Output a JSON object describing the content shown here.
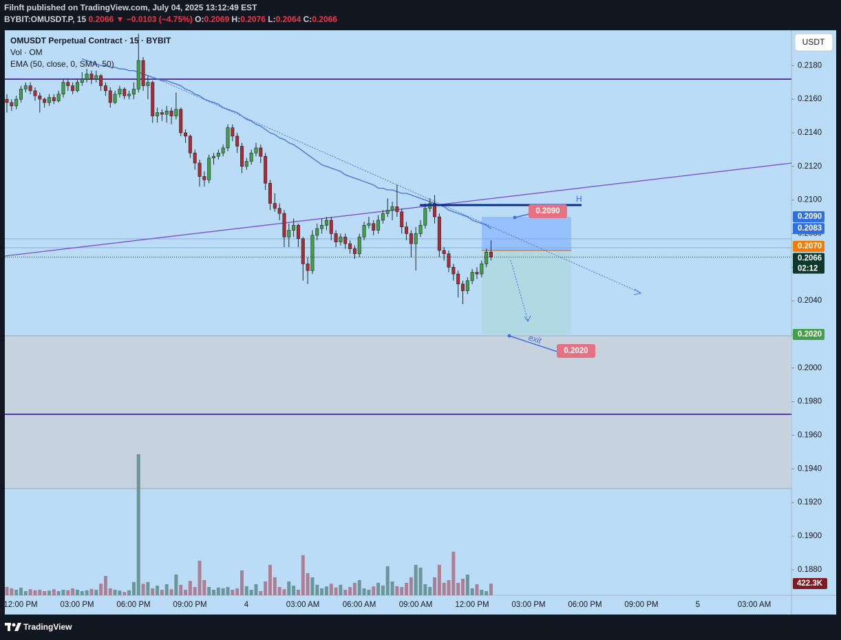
{
  "header": {
    "publisher": "Filnft published on TradingView.com, July 04, 2025 13:12:49 EST",
    "symbol": "BYBIT:OMUSDT.P, 15",
    "last": "0.2066",
    "change": "▼ −0.0103 (−4.75%)",
    "ohlc": [
      {
        "key": "O:",
        "value": "0.2069"
      },
      {
        "key": "H:",
        "value": "0.2076"
      },
      {
        "key": "L:",
        "value": "0.2064"
      },
      {
        "key": "C:",
        "value": "0.2066"
      }
    ]
  },
  "legend": [
    "OMUSDT Perpetual Contract · 15 · BYBIT",
    "Vol · OM",
    "EMA (50, close, 0, SMA, 50)"
  ],
  "currency_button": "USDT",
  "footer": {
    "brand": "TradingView"
  },
  "chart_data": {
    "type": "candlestick",
    "up_color": "#43a047",
    "down_color": "#b22833",
    "volume_up_color": "#6a969a",
    "volume_down_color": "#ad7f95",
    "ema_color": "#3f6fd8",
    "ylim": [
      0.18648,
      0.2201
    ],
    "yticks": [
      {
        "value": 0.218,
        "label": "0.2180"
      },
      {
        "value": 0.216,
        "label": "0.2160"
      },
      {
        "value": 0.214,
        "label": "0.2140"
      },
      {
        "value": 0.212,
        "label": "0.2120"
      },
      {
        "value": 0.21,
        "label": "0.2100"
      },
      {
        "value": 0.208,
        "label": "0.2080"
      },
      {
        "value": 0.206,
        "label": "0.2060"
      },
      {
        "value": 0.204,
        "label": "0.2040"
      },
      {
        "value": 0.202,
        "label": "0.2020"
      },
      {
        "value": 0.2,
        "label": "0.2000"
      },
      {
        "value": 0.198,
        "label": "0.1980"
      },
      {
        "value": 0.196,
        "label": "0.1960"
      },
      {
        "value": 0.194,
        "label": "0.1940"
      },
      {
        "value": 0.192,
        "label": "0.1920"
      },
      {
        "value": 0.19,
        "label": "0.1900"
      },
      {
        "value": 0.188,
        "label": "0.1880"
      }
    ],
    "time_labels": [
      "12:00 PM",
      "03:00 PM",
      "06:00 PM",
      "09:00 PM",
      "4",
      "03:00 AM",
      "06:00 AM",
      "09:00 AM",
      "12:00 PM",
      "03:00 PM",
      "06:00 PM",
      "09:00 PM",
      "5",
      "03:00 AM"
    ],
    "candles": [
      [
        0.216,
        0.2163,
        0.2152,
        0.2158
      ],
      [
        0.2158,
        0.216,
        0.2153,
        0.2156
      ],
      [
        0.2156,
        0.2162,
        0.2154,
        0.216
      ],
      [
        0.216,
        0.2168,
        0.2158,
        0.2166
      ],
      [
        0.2166,
        0.217,
        0.2164,
        0.2168
      ],
      [
        0.2168,
        0.217,
        0.2163,
        0.2165
      ],
      [
        0.2165,
        0.2167,
        0.2159,
        0.2162
      ],
      [
        0.2162,
        0.2164,
        0.2152,
        0.216
      ],
      [
        0.216,
        0.2161,
        0.2155,
        0.2158
      ],
      [
        0.2158,
        0.2163,
        0.2156,
        0.2161
      ],
      [
        0.2161,
        0.2163,
        0.2157,
        0.2159
      ],
      [
        0.2159,
        0.2165,
        0.2158,
        0.2163
      ],
      [
        0.2163,
        0.2172,
        0.2161,
        0.217
      ],
      [
        0.217,
        0.2172,
        0.2165,
        0.2168
      ],
      [
        0.2168,
        0.217,
        0.2163,
        0.2165
      ],
      [
        0.2165,
        0.2172,
        0.2164,
        0.217
      ],
      [
        0.217,
        0.2176,
        0.2168,
        0.2172
      ],
      [
        0.2172,
        0.2178,
        0.217,
        0.2175
      ],
      [
        0.2175,
        0.2177,
        0.2169,
        0.2172
      ],
      [
        0.2172,
        0.2177,
        0.217,
        0.2174
      ],
      [
        0.2174,
        0.2175,
        0.2165,
        0.2168
      ],
      [
        0.2168,
        0.217,
        0.2162,
        0.2165
      ],
      [
        0.2165,
        0.2167,
        0.2155,
        0.2158
      ],
      [
        0.2158,
        0.2165,
        0.2157,
        0.2163
      ],
      [
        0.2163,
        0.2168,
        0.2161,
        0.2166
      ],
      [
        0.2166,
        0.2167,
        0.216,
        0.2162
      ],
      [
        0.2162,
        0.2165,
        0.216,
        0.2163
      ],
      [
        0.2163,
        0.217,
        0.216,
        0.2166
      ],
      [
        0.2166,
        0.2199,
        0.2164,
        0.2183
      ],
      [
        0.2183,
        0.2185,
        0.2165,
        0.2168
      ],
      [
        0.2168,
        0.2174,
        0.216,
        0.217
      ],
      [
        0.217,
        0.2171,
        0.2146,
        0.215
      ],
      [
        0.215,
        0.2155,
        0.2146,
        0.2152
      ],
      [
        0.2152,
        0.2154,
        0.2147,
        0.2151
      ],
      [
        0.2151,
        0.2156,
        0.2146,
        0.2153
      ],
      [
        0.2153,
        0.2155,
        0.2145,
        0.215
      ],
      [
        0.215,
        0.2164,
        0.2148,
        0.2154
      ],
      [
        0.2154,
        0.2155,
        0.2138,
        0.214
      ],
      [
        0.214,
        0.2142,
        0.2134,
        0.2138
      ],
      [
        0.2138,
        0.2139,
        0.2125,
        0.2128
      ],
      [
        0.2128,
        0.213,
        0.2118,
        0.2122
      ],
      [
        0.2122,
        0.2124,
        0.2108,
        0.2114
      ],
      [
        0.2114,
        0.2117,
        0.2108,
        0.2112
      ],
      [
        0.2112,
        0.2127,
        0.211,
        0.2125
      ],
      [
        0.2125,
        0.2128,
        0.2121,
        0.2126
      ],
      [
        0.2126,
        0.213,
        0.2124,
        0.2128
      ],
      [
        0.2128,
        0.2133,
        0.2126,
        0.2131
      ],
      [
        0.2131,
        0.2145,
        0.2129,
        0.2143
      ],
      [
        0.2143,
        0.2145,
        0.2135,
        0.2138
      ],
      [
        0.2138,
        0.214,
        0.2128,
        0.2132
      ],
      [
        0.2132,
        0.2134,
        0.2116,
        0.212
      ],
      [
        0.212,
        0.2125,
        0.2118,
        0.2123
      ],
      [
        0.2123,
        0.213,
        0.2121,
        0.2128
      ],
      [
        0.2128,
        0.2134,
        0.2126,
        0.2131
      ],
      [
        0.2131,
        0.2133,
        0.2122,
        0.2126
      ],
      [
        0.2126,
        0.2128,
        0.2106,
        0.211
      ],
      [
        0.211,
        0.2112,
        0.2094,
        0.2098
      ],
      [
        0.2098,
        0.2104,
        0.2093,
        0.2095
      ],
      [
        0.2095,
        0.2098,
        0.2088,
        0.2092
      ],
      [
        0.2092,
        0.2094,
        0.2072,
        0.2078
      ],
      [
        0.2078,
        0.2086,
        0.2072,
        0.2082
      ],
      [
        0.2082,
        0.2089,
        0.2078,
        0.2085
      ],
      [
        0.2085,
        0.2086,
        0.2072,
        0.2077
      ],
      [
        0.2077,
        0.2078,
        0.2052,
        0.2062
      ],
      [
        0.2062,
        0.2066,
        0.205,
        0.2058
      ],
      [
        0.2058,
        0.2082,
        0.2056,
        0.2079
      ],
      [
        0.2079,
        0.2086,
        0.2076,
        0.2083
      ],
      [
        0.2083,
        0.2089,
        0.208,
        0.2085
      ],
      [
        0.2085,
        0.209,
        0.2082,
        0.2088
      ],
      [
        0.2088,
        0.209,
        0.2076,
        0.208
      ],
      [
        0.208,
        0.2082,
        0.2072,
        0.2075
      ],
      [
        0.2075,
        0.208,
        0.2073,
        0.2078
      ],
      [
        0.2078,
        0.208,
        0.2071,
        0.2074
      ],
      [
        0.2074,
        0.2076,
        0.2068,
        0.2071
      ],
      [
        0.2071,
        0.2073,
        0.2065,
        0.2068
      ],
      [
        0.2068,
        0.208,
        0.2066,
        0.2078
      ],
      [
        0.2078,
        0.2087,
        0.2076,
        0.2085
      ],
      [
        0.2085,
        0.209,
        0.2083,
        0.2086
      ],
      [
        0.2086,
        0.2088,
        0.2079,
        0.2082
      ],
      [
        0.2082,
        0.2091,
        0.208,
        0.2088
      ],
      [
        0.2088,
        0.2094,
        0.2086,
        0.2092
      ],
      [
        0.2092,
        0.2101,
        0.209,
        0.2094
      ],
      [
        0.2094,
        0.2099,
        0.2088,
        0.2096
      ],
      [
        0.2096,
        0.2109,
        0.209,
        0.2093
      ],
      [
        0.2093,
        0.2095,
        0.208,
        0.2084
      ],
      [
        0.2084,
        0.2087,
        0.2076,
        0.208
      ],
      [
        0.208,
        0.2082,
        0.2066,
        0.2074
      ],
      [
        0.2074,
        0.2084,
        0.2058,
        0.208
      ],
      [
        0.208,
        0.2088,
        0.2078,
        0.2085
      ],
      [
        0.2085,
        0.2098,
        0.2083,
        0.2095
      ],
      [
        0.2095,
        0.2101,
        0.2093,
        0.2098
      ],
      [
        0.2098,
        0.2103,
        0.2086,
        0.209
      ],
      [
        0.209,
        0.2092,
        0.2066,
        0.207
      ],
      [
        0.207,
        0.2072,
        0.2064,
        0.2068
      ],
      [
        0.2068,
        0.207,
        0.2057,
        0.206
      ],
      [
        0.206,
        0.2062,
        0.2052,
        0.2056
      ],
      [
        0.2056,
        0.2058,
        0.2042,
        0.205
      ],
      [
        0.205,
        0.2052,
        0.2038,
        0.2046
      ],
      [
        0.2046,
        0.2054,
        0.2044,
        0.2052
      ],
      [
        0.2052,
        0.2059,
        0.205,
        0.2057
      ],
      [
        0.2057,
        0.206,
        0.2053,
        0.2056
      ],
      [
        0.2056,
        0.2064,
        0.2054,
        0.2062
      ],
      [
        0.2062,
        0.2071,
        0.206,
        0.2069
      ],
      [
        0.2069,
        0.2076,
        0.2064,
        0.2066
      ]
    ],
    "volume": {
      "values": [
        300000,
        250000,
        200000,
        280000,
        150000,
        220000,
        180000,
        200000,
        150000,
        170000,
        220000,
        150000,
        200000,
        180000,
        250000,
        200000,
        150000,
        180000,
        230000,
        200000,
        420000,
        700000,
        250000,
        200000,
        170000,
        120000,
        180000,
        480000,
        5100000,
        420000,
        480000,
        250000,
        350000,
        200000,
        400000,
        220000,
        750000,
        380000,
        200000,
        520000,
        300000,
        1250000,
        550000,
        300000,
        200000,
        280000,
        250000,
        300000,
        200000,
        250000,
        900000,
        330000,
        200000,
        400000,
        150000,
        500000,
        1100000,
        650000,
        300000,
        220000,
        500000,
        350000,
        200000,
        1450000,
        800000,
        650000,
        380000,
        250000,
        320000,
        420000,
        280000,
        380000,
        200000,
        300000,
        450000,
        550000,
        250000,
        200000,
        320000,
        450000,
        350000,
        1050000,
        500000,
        330000,
        300000,
        450000,
        650000,
        1100000,
        1000000,
        400000,
        300000,
        650000,
        1100000,
        450000,
        550000,
        1575000,
        450000,
        600000,
        750000,
        250000,
        400000,
        200000,
        150000,
        422300
      ],
      "last": {
        "value": 422300,
        "label": "422.3K"
      }
    },
    "ema": [
      null,
      null,
      null,
      null,
      null,
      null,
      null,
      null,
      null,
      null,
      null,
      null,
      null,
      null,
      null,
      null,
      0.2184,
      0.2183,
      0.2182,
      0.2181,
      0.218,
      0.218,
      0.2179,
      0.2179,
      0.2178,
      0.2178,
      0.2177,
      0.2177,
      0.2176,
      0.2175,
      0.2174,
      0.2173,
      0.2172,
      0.2171,
      0.2171,
      0.217,
      0.2169,
      0.2168,
      0.2166,
      0.2165,
      0.2163,
      0.2162,
      0.216,
      0.2159,
      0.2158,
      0.2157,
      0.2155,
      0.2154,
      0.2153,
      0.2152,
      0.215,
      0.2148,
      0.2147,
      0.2145,
      0.2144,
      0.2142,
      0.214,
      0.2139,
      0.2137,
      0.2136,
      0.2134,
      0.2133,
      0.2131,
      0.2129,
      0.2127,
      0.2125,
      0.2123,
      0.2121,
      0.212,
      0.2119,
      0.2118,
      0.2117,
      0.2115,
      0.2114,
      0.2113,
      0.2112,
      0.2111,
      0.211,
      0.2109,
      0.2107,
      0.2107,
      0.2106,
      0.2106,
      0.2105,
      0.2104,
      0.2104,
      0.2103,
      0.2102,
      0.2101,
      0.21,
      0.2099,
      0.2098,
      0.2097,
      0.2096,
      0.2094,
      0.2093,
      0.2092,
      0.2091,
      0.209,
      0.2088,
      0.2087,
      0.2086,
      0.2085,
      0.2083
    ],
    "price_tags": [
      {
        "value": 0.209,
        "label": "0.2090",
        "color": "#2f6fe0"
      },
      {
        "value": 0.2083,
        "label": "0.2083",
        "color": "#2f6fe0"
      },
      {
        "value": 0.207,
        "label": "0.2070",
        "color": "#f57c00"
      },
      {
        "value": 0.2066,
        "label": "0.2066",
        "color": "#0d3a2a"
      },
      {
        "value": 0.202,
        "label": "0.2020",
        "color": "#43a047"
      }
    ],
    "countdown": "02:12",
    "target": {
      "value": 0.209,
      "label": "0.2090"
    },
    "stop": {
      "value": 0.202,
      "label": "0.2020"
    },
    "annotations": [
      "exit",
      "H"
    ]
  }
}
